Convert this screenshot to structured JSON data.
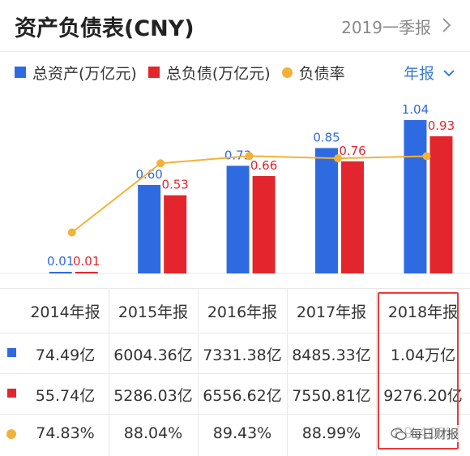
{
  "header": {
    "title": "资产负债表(CNY)",
    "period": "2019一季报"
  },
  "legend": {
    "items": [
      {
        "label": "总资产(万亿元)",
        "color": "#2f6be0",
        "marker": "square"
      },
      {
        "label": "总负债(万亿元)",
        "color": "#e3262d",
        "marker": "square"
      },
      {
        "label": "负债率",
        "color": "#f2b23a",
        "marker": "dot"
      }
    ],
    "selector_label": "年报"
  },
  "chart_data": {
    "type": "bar",
    "categories": [
      "2014年报",
      "2015年报",
      "2016年报",
      "2017年报",
      "2018年报"
    ],
    "series": [
      {
        "name": "总资产(万亿元)",
        "type": "bar",
        "color": "#2f6be0",
        "values": [
          0.01,
          0.6,
          0.73,
          0.85,
          1.04
        ],
        "labels": [
          "0.01",
          "0.60",
          "0.73",
          "0.85",
          "1.04"
        ]
      },
      {
        "name": "总负债(万亿元)",
        "type": "bar",
        "color": "#e3262d",
        "values": [
          0.01,
          0.53,
          0.66,
          0.76,
          0.93
        ],
        "labels": [
          "0.01",
          "0.53",
          "0.66",
          "0.76",
          "0.93"
        ]
      },
      {
        "name": "负债率",
        "type": "line",
        "color": "#f2b23a",
        "values": [
          74.83,
          88.04,
          89.43,
          88.99,
          89.4
        ]
      }
    ],
    "ylim_bars": [
      0,
      1.1
    ],
    "ylim_line": [
      67,
      98
    ],
    "grid": false
  },
  "table": {
    "headers": [
      "2014年报",
      "2015年报",
      "2016年报",
      "2017年报",
      "2018年报"
    ],
    "rows": [
      {
        "indicator_color": "#2f6be0",
        "indicator": "square",
        "values": [
          "74.49亿",
          "6004.36亿",
          "7331.38亿",
          "8485.33亿",
          "1.04万亿"
        ]
      },
      {
        "indicator_color": "#e3262d",
        "indicator": "square",
        "values": [
          "55.74亿",
          "5286.03亿",
          "6556.62亿",
          "7550.81亿",
          "9276.20亿"
        ]
      },
      {
        "indicator_color": "#f2b23a",
        "indicator": "dot",
        "values": [
          "74.83%",
          "88.04%",
          "89.43%",
          "88.99%",
          "89.40%"
        ]
      }
    ],
    "highlight_color": "#e53b3b"
  },
  "watermark": {
    "text": "每日财报",
    "icon": "wechat-icon"
  }
}
